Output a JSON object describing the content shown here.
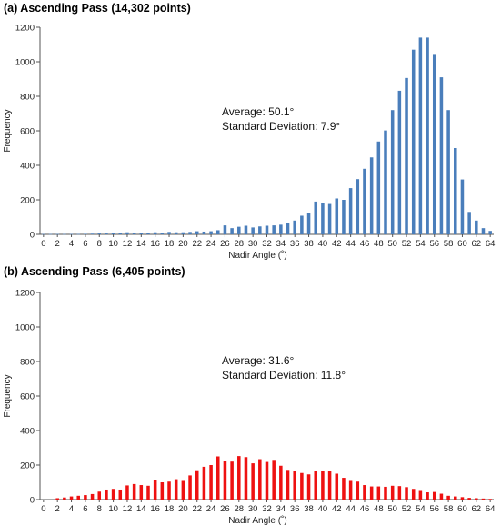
{
  "chart_data": [
    {
      "type": "bar",
      "title": "(a) Ascending Pass (14,302 points)",
      "xlabel": "Nadir Angle (˚)",
      "ylabel": "Frequency",
      "ylim": [
        0,
        1200
      ],
      "yticks": [
        0,
        200,
        400,
        600,
        800,
        1000,
        1200
      ],
      "xticks": [
        0,
        2,
        4,
        6,
        8,
        10,
        12,
        14,
        16,
        18,
        20,
        22,
        24,
        26,
        28,
        30,
        32,
        34,
        36,
        38,
        40,
        42,
        44,
        46,
        48,
        50,
        52,
        54,
        56,
        58,
        60,
        62,
        64
      ],
      "color": "#4a7ebb",
      "grid": false,
      "annotations": [
        "Average: 50.1°",
        "Standard Deviation: 7.9°"
      ],
      "x": [
        0,
        1,
        2,
        3,
        4,
        5,
        6,
        7,
        8,
        9,
        10,
        11,
        12,
        13,
        14,
        15,
        16,
        17,
        18,
        19,
        20,
        21,
        22,
        23,
        24,
        25,
        26,
        27,
        28,
        29,
        30,
        31,
        32,
        33,
        34,
        35,
        36,
        37,
        38,
        39,
        40,
        41,
        42,
        43,
        44,
        45,
        46,
        47,
        48,
        49,
        50,
        51,
        52,
        53,
        54,
        55,
        56,
        57,
        58,
        59,
        60,
        61,
        62,
        63,
        64
      ],
      "values": [
        2,
        2,
        2,
        2,
        2,
        2,
        3,
        4,
        5,
        5,
        8,
        7,
        12,
        8,
        10,
        8,
        12,
        8,
        14,
        12,
        12,
        14,
        18,
        16,
        18,
        24,
        52,
        36,
        44,
        50,
        40,
        46,
        50,
        52,
        56,
        68,
        80,
        108,
        122,
        190,
        182,
        176,
        208,
        200,
        268,
        320,
        380,
        446,
        538,
        602,
        720,
        832,
        906,
        1070,
        1140,
        1140,
        1040,
        910,
        720,
        500,
        318,
        130,
        80,
        36,
        20
      ]
    },
    {
      "type": "bar",
      "title": "(b) Ascending Pass (6,405 points)",
      "xlabel": "Nadir Angle (˚)",
      "ylabel": "Frequency",
      "ylim": [
        0,
        1200
      ],
      "yticks": [
        0,
        200,
        400,
        600,
        800,
        1000,
        1200
      ],
      "xticks": [
        0,
        2,
        4,
        6,
        8,
        10,
        12,
        14,
        16,
        18,
        20,
        22,
        24,
        26,
        28,
        30,
        32,
        34,
        36,
        38,
        40,
        42,
        44,
        46,
        48,
        50,
        52,
        54,
        56,
        58,
        60,
        62,
        64
      ],
      "color": "#ee1111",
      "grid": false,
      "annotations": [
        "Average: 31.6°",
        "Standard Deviation: 11.8°"
      ],
      "x": [
        0,
        1,
        2,
        3,
        4,
        5,
        6,
        7,
        8,
        9,
        10,
        11,
        12,
        13,
        14,
        15,
        16,
        17,
        18,
        19,
        20,
        21,
        22,
        23,
        24,
        25,
        26,
        27,
        28,
        29,
        30,
        31,
        32,
        33,
        34,
        35,
        36,
        37,
        38,
        39,
        40,
        41,
        42,
        43,
        44,
        45,
        46,
        47,
        48,
        49,
        50,
        51,
        52,
        53,
        54,
        55,
        56,
        57,
        58,
        59,
        60,
        61,
        62,
        63,
        64
      ],
      "values": [
        0,
        0,
        8,
        12,
        18,
        22,
        26,
        32,
        46,
        58,
        62,
        58,
        82,
        90,
        84,
        80,
        112,
        100,
        104,
        118,
        108,
        140,
        170,
        190,
        200,
        250,
        222,
        220,
        252,
        246,
        210,
        234,
        218,
        230,
        196,
        172,
        164,
        154,
        146,
        164,
        168,
        168,
        150,
        126,
        108,
        104,
        84,
        76,
        76,
        74,
        80,
        78,
        72,
        62,
        50,
        42,
        44,
        34,
        22,
        18,
        14,
        10,
        8,
        6,
        4
      ]
    }
  ]
}
